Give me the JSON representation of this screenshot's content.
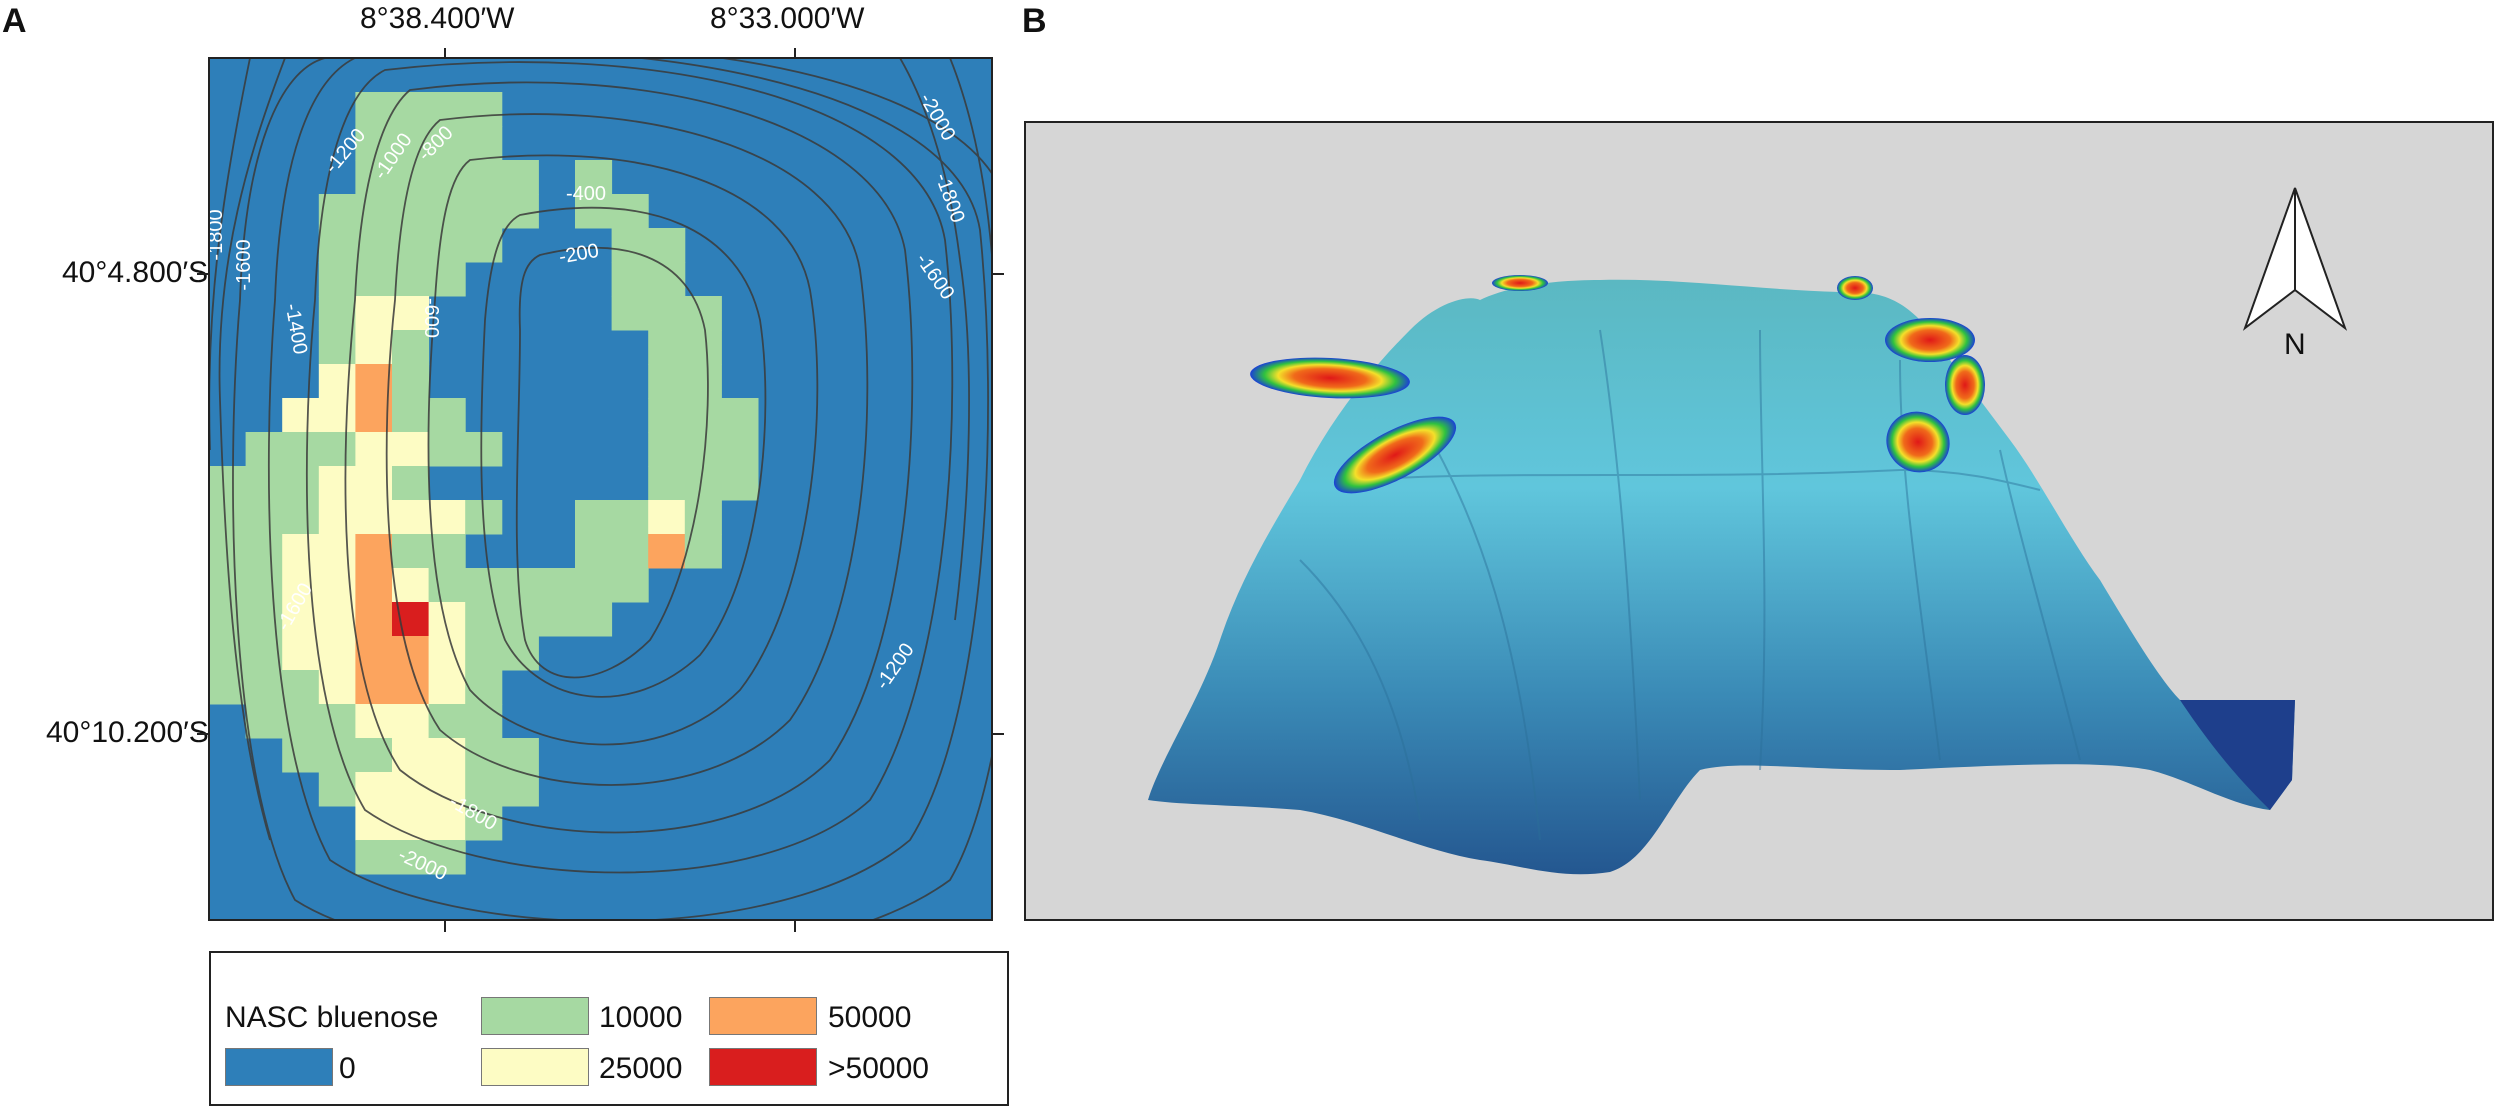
{
  "panels": {
    "a_label": "A",
    "b_label": "B"
  },
  "panel_a": {
    "lon_labels": [
      "8°38.400′W",
      "8°33.000′W"
    ],
    "lat_labels": [
      "40°4.800′S",
      "40°10.200′S"
    ],
    "contour_labels": [
      "-1200",
      "-1000",
      "-800",
      "-400",
      "-200",
      "-600",
      "-1800",
      "-1600",
      "-2000",
      "-1400",
      "-1600",
      "-1800",
      "-2000",
      "-1800",
      "-1600",
      "-1200"
    ]
  },
  "legend": {
    "title": "NASC bluenose",
    "items": [
      {
        "label": "0",
        "color": "#2e7fb9"
      },
      {
        "label": "10000",
        "color": "#a6d9a2"
      },
      {
        "label": "25000",
        "color": "#fdfcc4"
      },
      {
        "label": "50000",
        "color": "#fca45e"
      },
      {
        "label": ">50000",
        "color": "#d91e1e"
      }
    ]
  },
  "panel_b": {
    "north_label": "N"
  }
}
